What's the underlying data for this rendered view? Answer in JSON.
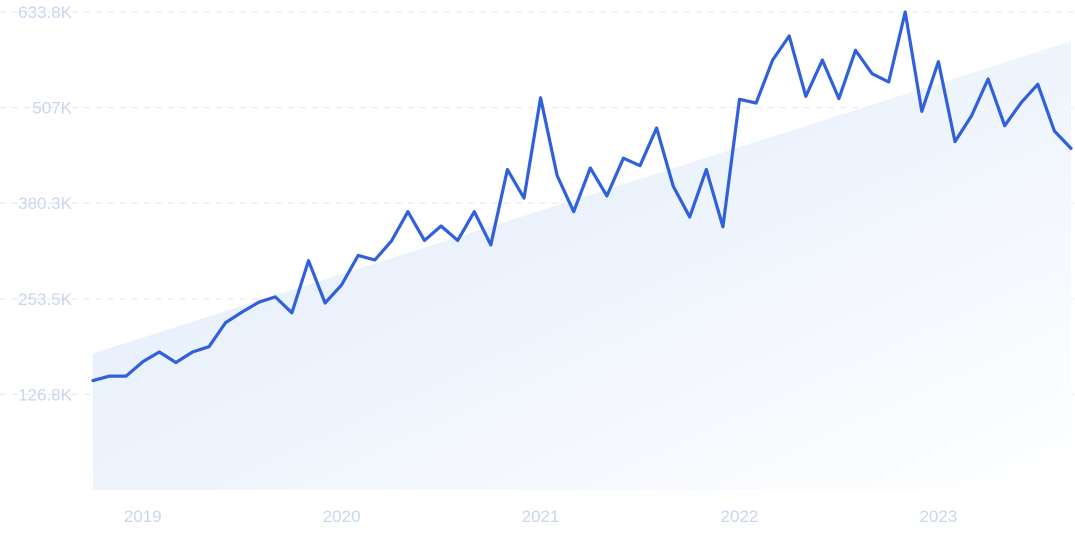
{
  "chart_data": {
    "type": "line",
    "xlabel": "",
    "ylabel": "",
    "ylim": [
      0,
      633.8
    ],
    "y_unit": "K",
    "y_ticks": [
      "126.8K",
      "253.5K",
      "380.3K",
      "507K",
      "633.8K"
    ],
    "y_tick_values": [
      126.8,
      253.5,
      380.3,
      507,
      633.8
    ],
    "x_ticks": [
      "2019",
      "2020",
      "2021",
      "2022",
      "2023"
    ],
    "grid": true,
    "legend": "none",
    "colors": {
      "line": "#3060db",
      "trend_fill_start": "#dde9fa",
      "trend_fill_end": "#ffffff",
      "grid": "#e3e8f2",
      "tick_text": "#c9d6ee"
    },
    "trend": {
      "start": 181,
      "end": 595
    },
    "series": [
      {
        "values": [
          145,
          151,
          151,
          170,
          183,
          169,
          183,
          190,
          222,
          236,
          249,
          256,
          235,
          304,
          248,
          272,
          311,
          305,
          330,
          369,
          331,
          350,
          331,
          369,
          325,
          425,
          387,
          520,
          417,
          369,
          427,
          390,
          440,
          430,
          480,
          403,
          362,
          425,
          349,
          518,
          513,
          570,
          602,
          522,
          570,
          519,
          583,
          552,
          541,
          633.8,
          502,
          568,
          462,
          496,
          545,
          483,
          514,
          538,
          476,
          453
        ]
      }
    ]
  }
}
